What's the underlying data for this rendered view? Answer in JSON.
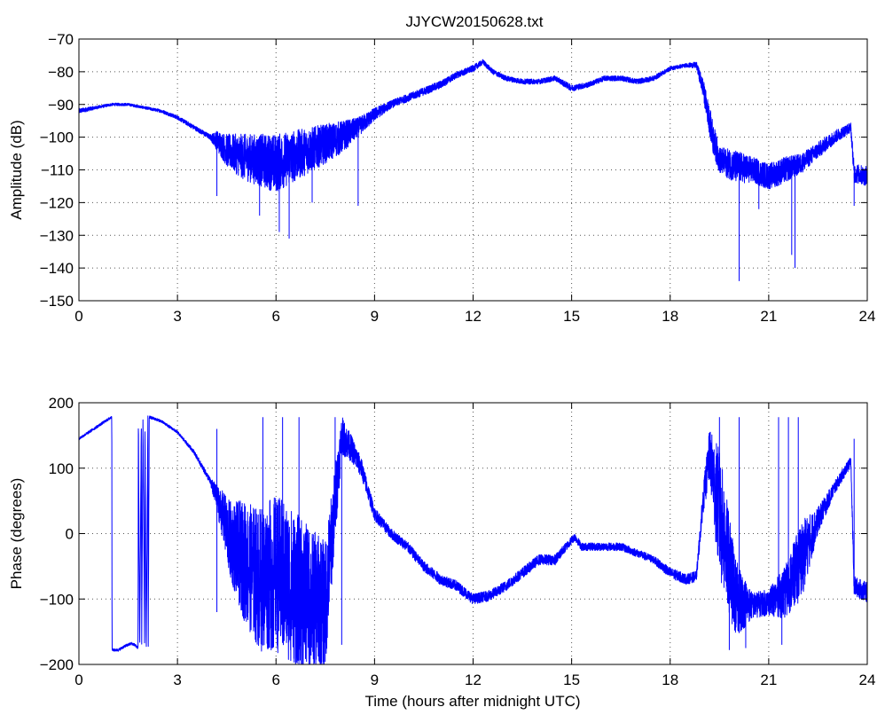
{
  "figure": {
    "title": "JJYCW20150628.txt"
  },
  "colors": {
    "series": "#0000ff",
    "axes": "#000000",
    "grid": "#555555",
    "background": "#ffffff"
  },
  "chart_data": [
    {
      "type": "line",
      "title": "JJYCW20150628.txt",
      "xlabel": "",
      "ylabel": "Amplitude (dB)",
      "xlim": [
        0,
        24
      ],
      "ylim": [
        -150,
        -70
      ],
      "xticks": [
        0,
        3,
        6,
        9,
        12,
        15,
        18,
        21,
        24
      ],
      "yticks": [
        -150,
        -140,
        -130,
        -120,
        -110,
        -100,
        -90,
        -80,
        -70
      ],
      "grid": true,
      "series": [
        {
          "x": [
            0,
            0.5,
            1,
            1.5,
            2,
            2.5,
            3,
            3.5,
            4,
            4.2,
            4.5,
            5,
            5.5,
            6,
            6.5,
            7,
            7.5,
            8,
            8.5,
            9,
            9.5,
            10,
            10.5,
            11,
            11.5,
            12,
            12.3,
            12.6,
            13,
            13.5,
            14,
            14.5,
            15,
            15.5,
            16,
            16.5,
            17,
            17.5,
            18,
            18.5,
            18.8,
            19,
            19.3,
            19.5,
            20,
            20.5,
            21,
            21.5,
            22,
            22.5,
            23,
            23.5,
            23.6,
            24
          ],
          "values": [
            -92,
            -91,
            -90,
            -90,
            -91,
            -92,
            -94,
            -97,
            -100,
            -101,
            -104,
            -106,
            -107,
            -108,
            -106,
            -104,
            -102,
            -100,
            -97,
            -93,
            -90,
            -88,
            -86,
            -84,
            -81,
            -79,
            -77,
            -80,
            -82,
            -83,
            -83,
            -82,
            -85,
            -84,
            -82,
            -82,
            -83,
            -82,
            -79,
            -78,
            -78,
            -85,
            -100,
            -107,
            -109,
            -110,
            -112,
            -110,
            -108,
            -104,
            -100,
            -97,
            -111,
            -112
          ],
          "noise": [
            0.8,
            0.5,
            0.4,
            0.4,
            0.4,
            0.5,
            0.6,
            0.7,
            0.8,
            3,
            5,
            7,
            8,
            9,
            8,
            7,
            6,
            5,
            3,
            2,
            1.2,
            1.2,
            1.2,
            1.2,
            1.0,
            1.0,
            0.8,
            0.8,
            0.8,
            0.8,
            0.8,
            0.8,
            1.0,
            0.8,
            0.8,
            0.8,
            0.8,
            0.8,
            0.6,
            0.6,
            1.0,
            3,
            5,
            4,
            5,
            4,
            4,
            4,
            3,
            2.5,
            2,
            1.5,
            3,
            3
          ],
          "spikes": [
            [
              4.2,
              -118
            ],
            [
              5.5,
              -124
            ],
            [
              6.1,
              -129
            ],
            [
              6.4,
              -131
            ],
            [
              7.1,
              -120
            ],
            [
              8.5,
              -121
            ],
            [
              19.4,
              -107
            ],
            [
              20.1,
              -144
            ],
            [
              20.7,
              -122
            ],
            [
              21.7,
              -136
            ],
            [
              21.8,
              -140
            ],
            [
              23.6,
              -121
            ]
          ]
        }
      ]
    },
    {
      "type": "line",
      "title": "",
      "xlabel": "Time (hours after midnight UTC)",
      "ylabel": "Phase (degrees)",
      "xlim": [
        0,
        24
      ],
      "ylim": [
        -200,
        200
      ],
      "xticks": [
        0,
        3,
        6,
        9,
        12,
        15,
        18,
        21,
        24
      ],
      "yticks": [
        -200,
        -100,
        0,
        100,
        200
      ],
      "grid": true,
      "series": [
        {
          "x": [
            0,
            0.3,
            0.6,
            0.9,
            1.0,
            1.01,
            1.1,
            1.2,
            1.3,
            1.4,
            1.5,
            1.6,
            1.7,
            1.8,
            1.81,
            1.85,
            1.9,
            1.91,
            1.95,
            2.0,
            2.01,
            2.05,
            2.1,
            2.11,
            2.14,
            2.15,
            2.5,
            3.0,
            3.5,
            4.0,
            4.3,
            4.6,
            5.0,
            5.5,
            6.0,
            6.5,
            7.0,
            7.5,
            8.0,
            8.3,
            8.6,
            9.0,
            9.5,
            10.0,
            10.5,
            11.0,
            11.5,
            12.0,
            12.5,
            13.0,
            13.5,
            14.0,
            14.5,
            15.0,
            15.1,
            15.3,
            15.5,
            16.0,
            16.5,
            17.0,
            17.5,
            18.0,
            18.5,
            18.8,
            19.0,
            19.2,
            19.5,
            20.0,
            20.5,
            21.0,
            21.5,
            22.0,
            22.5,
            23.0,
            23.5,
            23.6,
            24
          ],
          "values": [
            145,
            155,
            165,
            175,
            178,
            -178,
            -178,
            -178,
            -175,
            -172,
            -170,
            -168,
            -170,
            -175,
            178,
            -178,
            178,
            -178,
            178,
            -178,
            178,
            -178,
            178,
            -178,
            178,
            178,
            172,
            155,
            125,
            80,
            40,
            -10,
            -40,
            -70,
            -60,
            -80,
            -100,
            -110,
            150,
            130,
            100,
            30,
            0,
            -20,
            -50,
            -70,
            -80,
            -100,
            -95,
            -80,
            -60,
            -40,
            -40,
            -10,
            -5,
            -20,
            -20,
            -20,
            -20,
            -30,
            -40,
            -60,
            -70,
            -65,
            50,
            120,
            30,
            -100,
            -110,
            -105,
            -90,
            -40,
            20,
            70,
            110,
            -80,
            -90
          ],
          "noise": [
            2,
            2,
            2,
            2,
            2,
            2,
            2,
            2,
            2,
            2,
            2,
            2,
            2,
            2,
            2,
            2,
            2,
            2,
            2,
            2,
            2,
            2,
            2,
            2,
            2,
            2,
            2,
            2,
            3,
            5,
            30,
            60,
            90,
            110,
            120,
            120,
            110,
            100,
            30,
            20,
            15,
            10,
            8,
            8,
            8,
            8,
            8,
            8,
            8,
            8,
            8,
            8,
            8,
            6,
            6,
            6,
            6,
            6,
            6,
            6,
            6,
            8,
            8,
            8,
            20,
            40,
            100,
            60,
            20,
            20,
            40,
            60,
            20,
            10,
            8,
            15,
            15
          ],
          "spikes": [
            [
              4.2,
              -120
            ],
            [
              4.2,
              160
            ],
            [
              5.6,
              178
            ],
            [
              5.9,
              -175
            ],
            [
              6.2,
              178
            ],
            [
              6.7,
              178
            ],
            [
              7.3,
              -178
            ],
            [
              7.8,
              178
            ],
            [
              8.0,
              -170
            ],
            [
              19.5,
              178
            ],
            [
              19.8,
              -178
            ],
            [
              20.1,
              178
            ],
            [
              20.3,
              -175
            ],
            [
              21.3,
              178
            ],
            [
              21.4,
              -170
            ],
            [
              21.6,
              178
            ],
            [
              21.9,
              178
            ],
            [
              23.6,
              145
            ]
          ]
        }
      ]
    }
  ]
}
